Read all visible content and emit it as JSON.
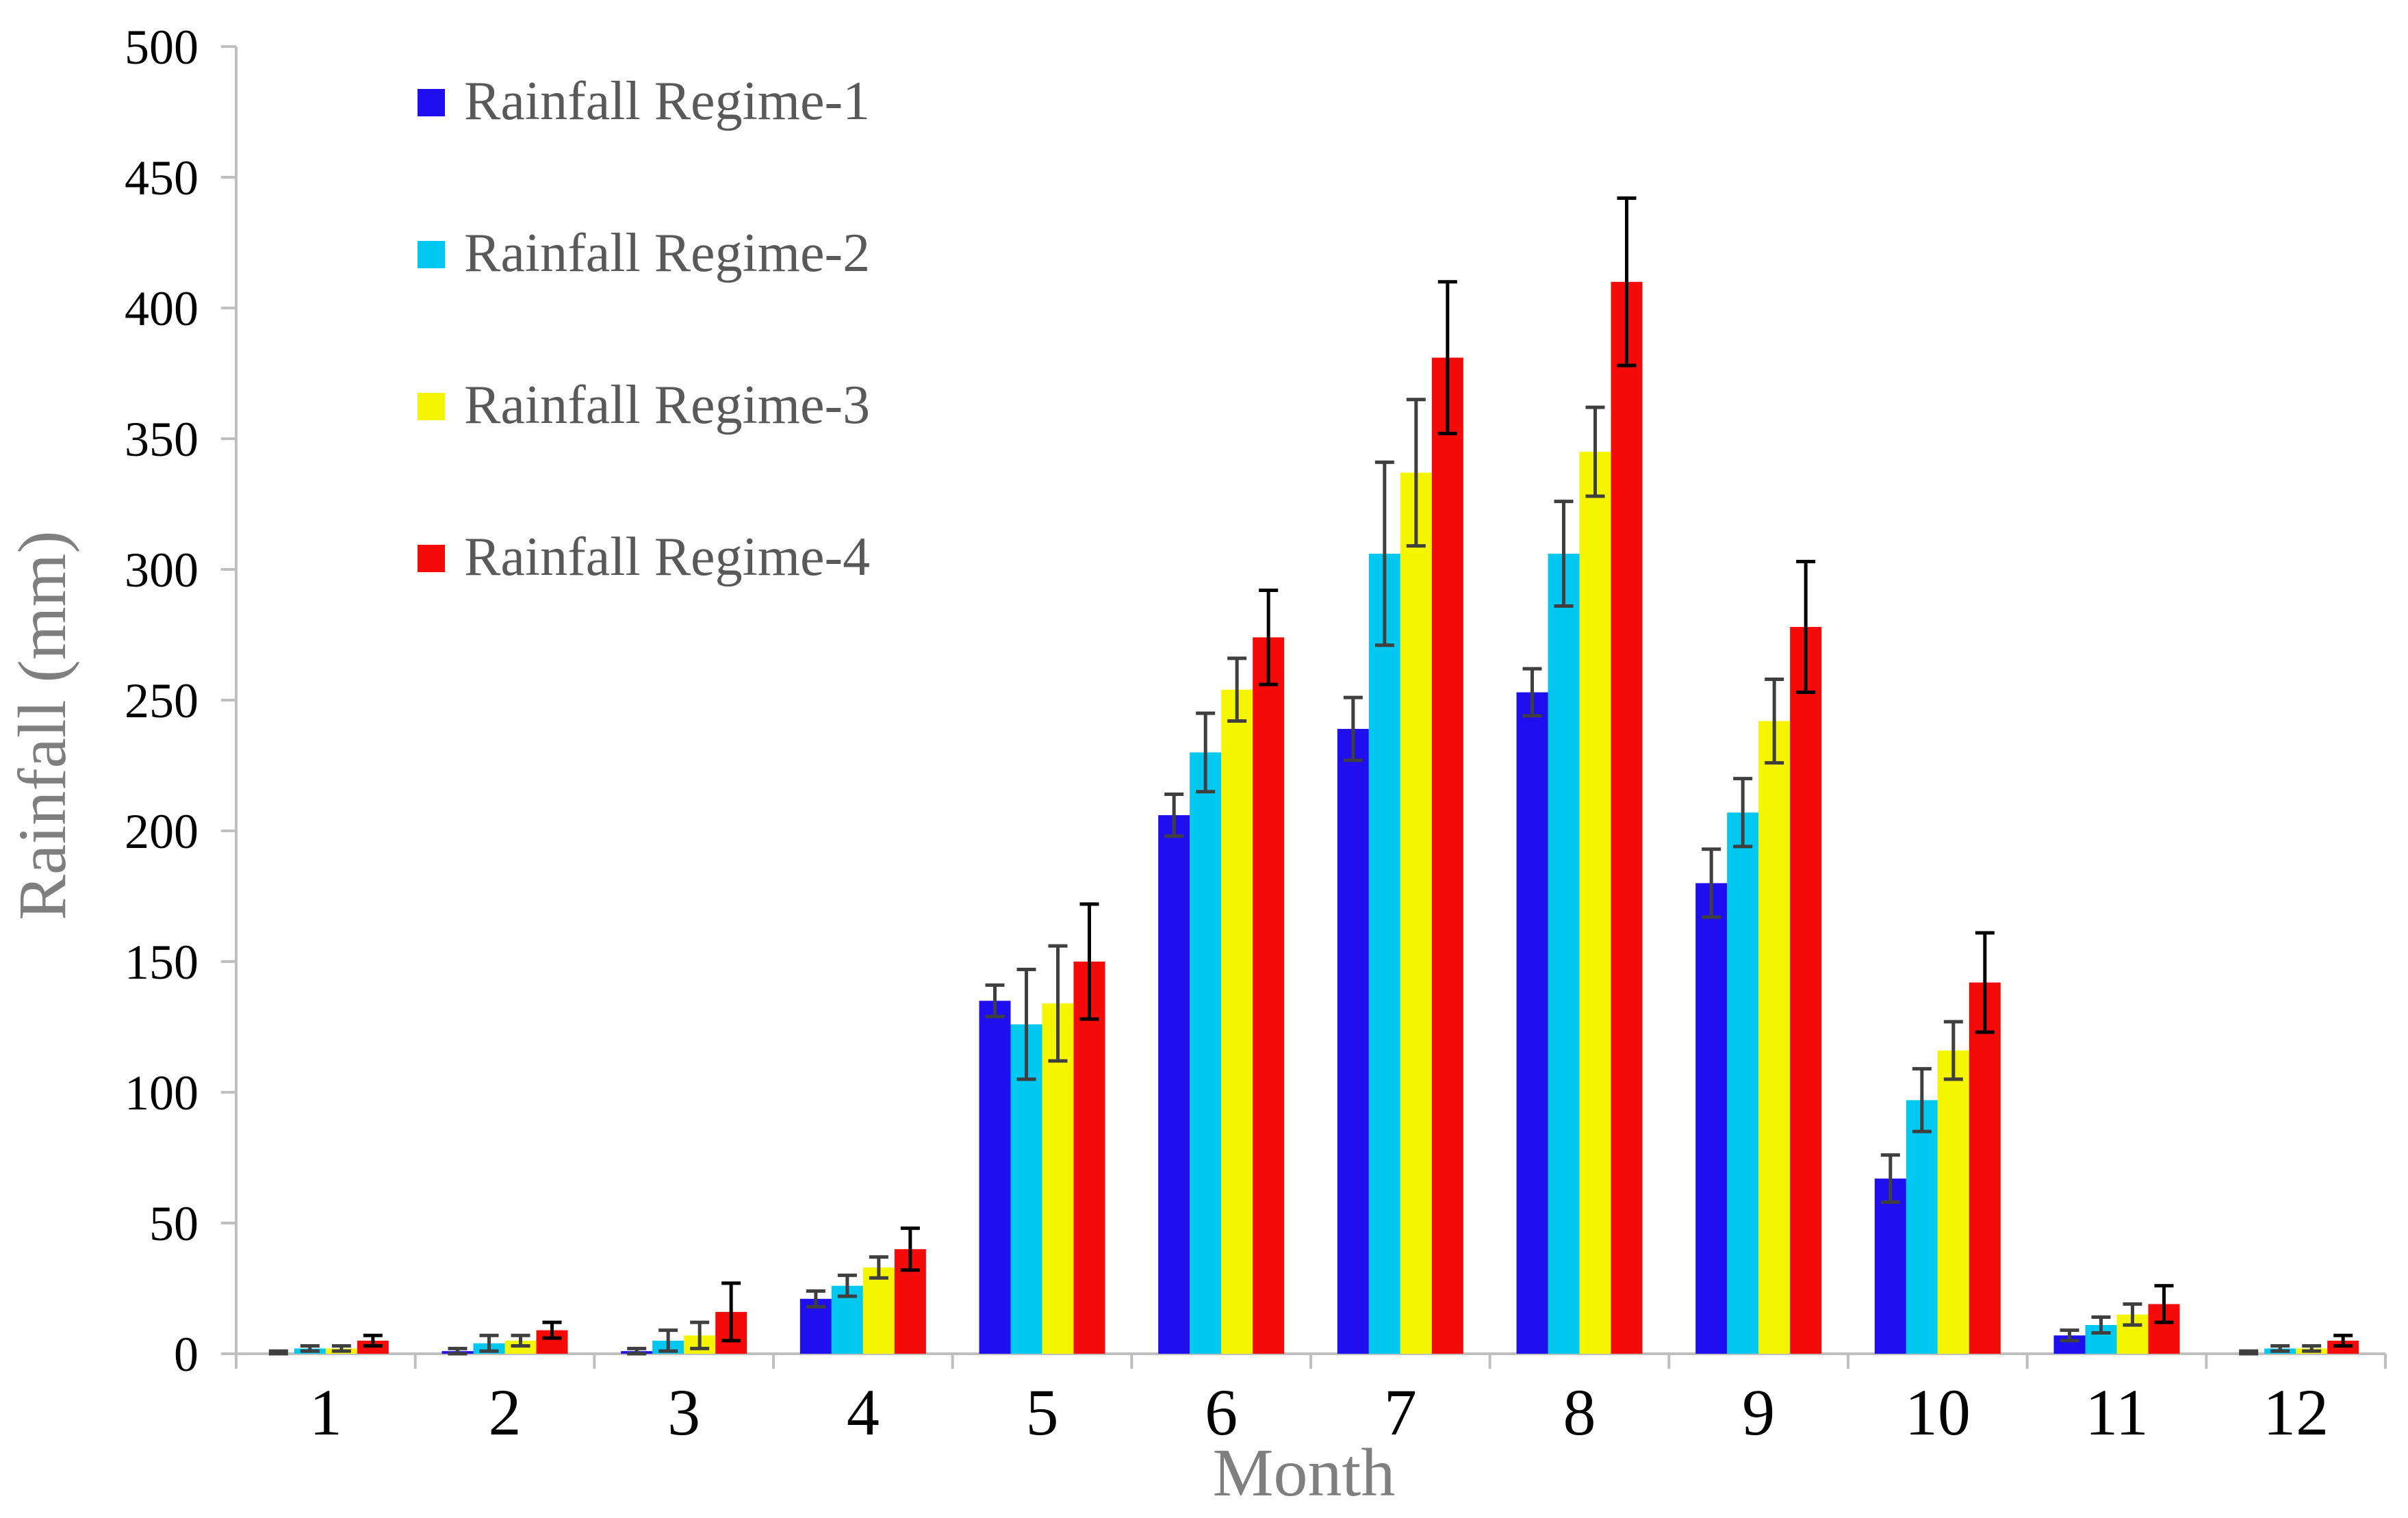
{
  "chart_data": {
    "type": "bar",
    "xlabel": "Month",
    "ylabel": "Rainfall (mm)",
    "ylim": [
      0,
      500
    ],
    "yticks": [
      0,
      50,
      100,
      150,
      200,
      250,
      300,
      350,
      400,
      450,
      500
    ],
    "categories": [
      "1",
      "2",
      "3",
      "4",
      "5",
      "6",
      "7",
      "8",
      "9",
      "10",
      "11",
      "12"
    ],
    "grid": false,
    "legend_position": "top-left",
    "series": [
      {
        "name": "Rainfall Regime-1",
        "color": "#1f0ff0",
        "values": [
          0,
          1,
          1,
          21,
          135,
          206,
          239,
          253,
          180,
          67,
          7,
          0
        ],
        "errors": [
          1,
          1,
          1,
          3,
          6,
          8,
          12,
          9,
          13,
          9,
          2,
          1
        ]
      },
      {
        "name": "Rainfall Regime-2",
        "color": "#00c8f0",
        "values": [
          2,
          4,
          5,
          26,
          126,
          230,
          306,
          306,
          207,
          97,
          11,
          2
        ],
        "errors": [
          1,
          3,
          4,
          4,
          21,
          15,
          35,
          20,
          13,
          12,
          3,
          1
        ]
      },
      {
        "name": "Rainfall Regime-3",
        "color": "#f5f500",
        "values": [
          2,
          5,
          7,
          33,
          134,
          254,
          337,
          345,
          242,
          116,
          15,
          2
        ],
        "errors": [
          1,
          2,
          5,
          4,
          22,
          12,
          28,
          17,
          16,
          11,
          4,
          1
        ]
      },
      {
        "name": "Rainfall Regime-4",
        "color": "#f50a0a",
        "values": [
          5,
          9,
          16,
          40,
          150,
          274,
          381,
          410,
          278,
          142,
          19,
          5
        ],
        "errors": [
          2,
          3,
          11,
          8,
          22,
          18,
          29,
          32,
          25,
          19,
          7,
          2
        ]
      }
    ]
  }
}
